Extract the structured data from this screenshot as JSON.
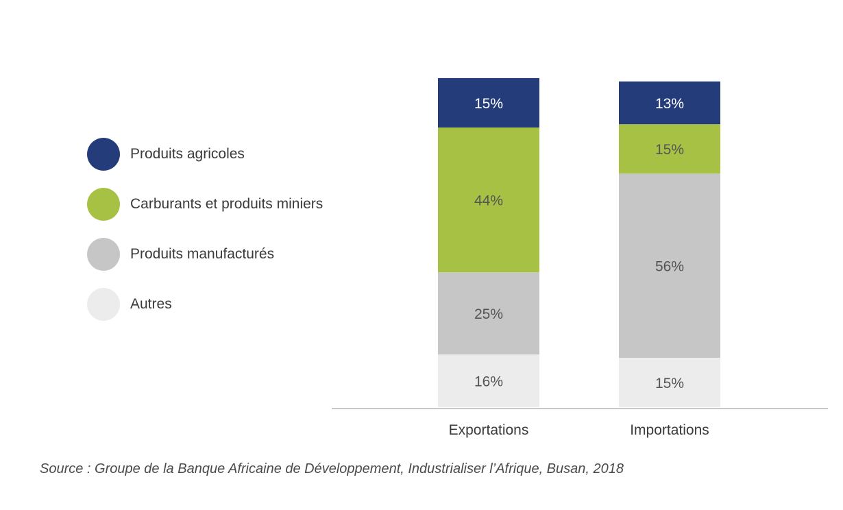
{
  "chart_data": {
    "type": "bar",
    "stacked": true,
    "categories": [
      "Exportations",
      "Importations"
    ],
    "series": [
      {
        "name": "Autres",
        "color": "#ececec",
        "label_color": "#555555",
        "values": [
          16,
          15
        ],
        "labels": [
          "16%",
          "15%"
        ]
      },
      {
        "name": "Produits manufacturés",
        "color": "#c6c6c6",
        "label_color": "#555555",
        "values": [
          25,
          56
        ],
        "labels": [
          "25%",
          "56%"
        ]
      },
      {
        "name": "Carburants et produits miniers",
        "color": "#a6c143",
        "label_color": "#555555",
        "values": [
          44,
          15
        ],
        "labels": [
          "44%",
          "15%"
        ]
      },
      {
        "name": "Produits agricoles",
        "color": "#253c7a",
        "label_color": "#ffffff",
        "values": [
          15,
          13
        ],
        "labels": [
          "15%",
          "13%"
        ]
      }
    ],
    "ylim": [
      0,
      100
    ],
    "grid": false,
    "legend_position": "left"
  },
  "legend": [
    {
      "label": "Produits agricoles",
      "color": "#253c7a"
    },
    {
      "label": "Carburants et produits miniers",
      "color": "#a6c143"
    },
    {
      "label": "Produits manufacturés",
      "color": "#c6c6c6"
    },
    {
      "label": "Autres",
      "color": "#ececec"
    }
  ],
  "source": "Source :  Groupe de la Banque Africaine de Développement, Industrialiser l’Afrique, Busan, 2018"
}
